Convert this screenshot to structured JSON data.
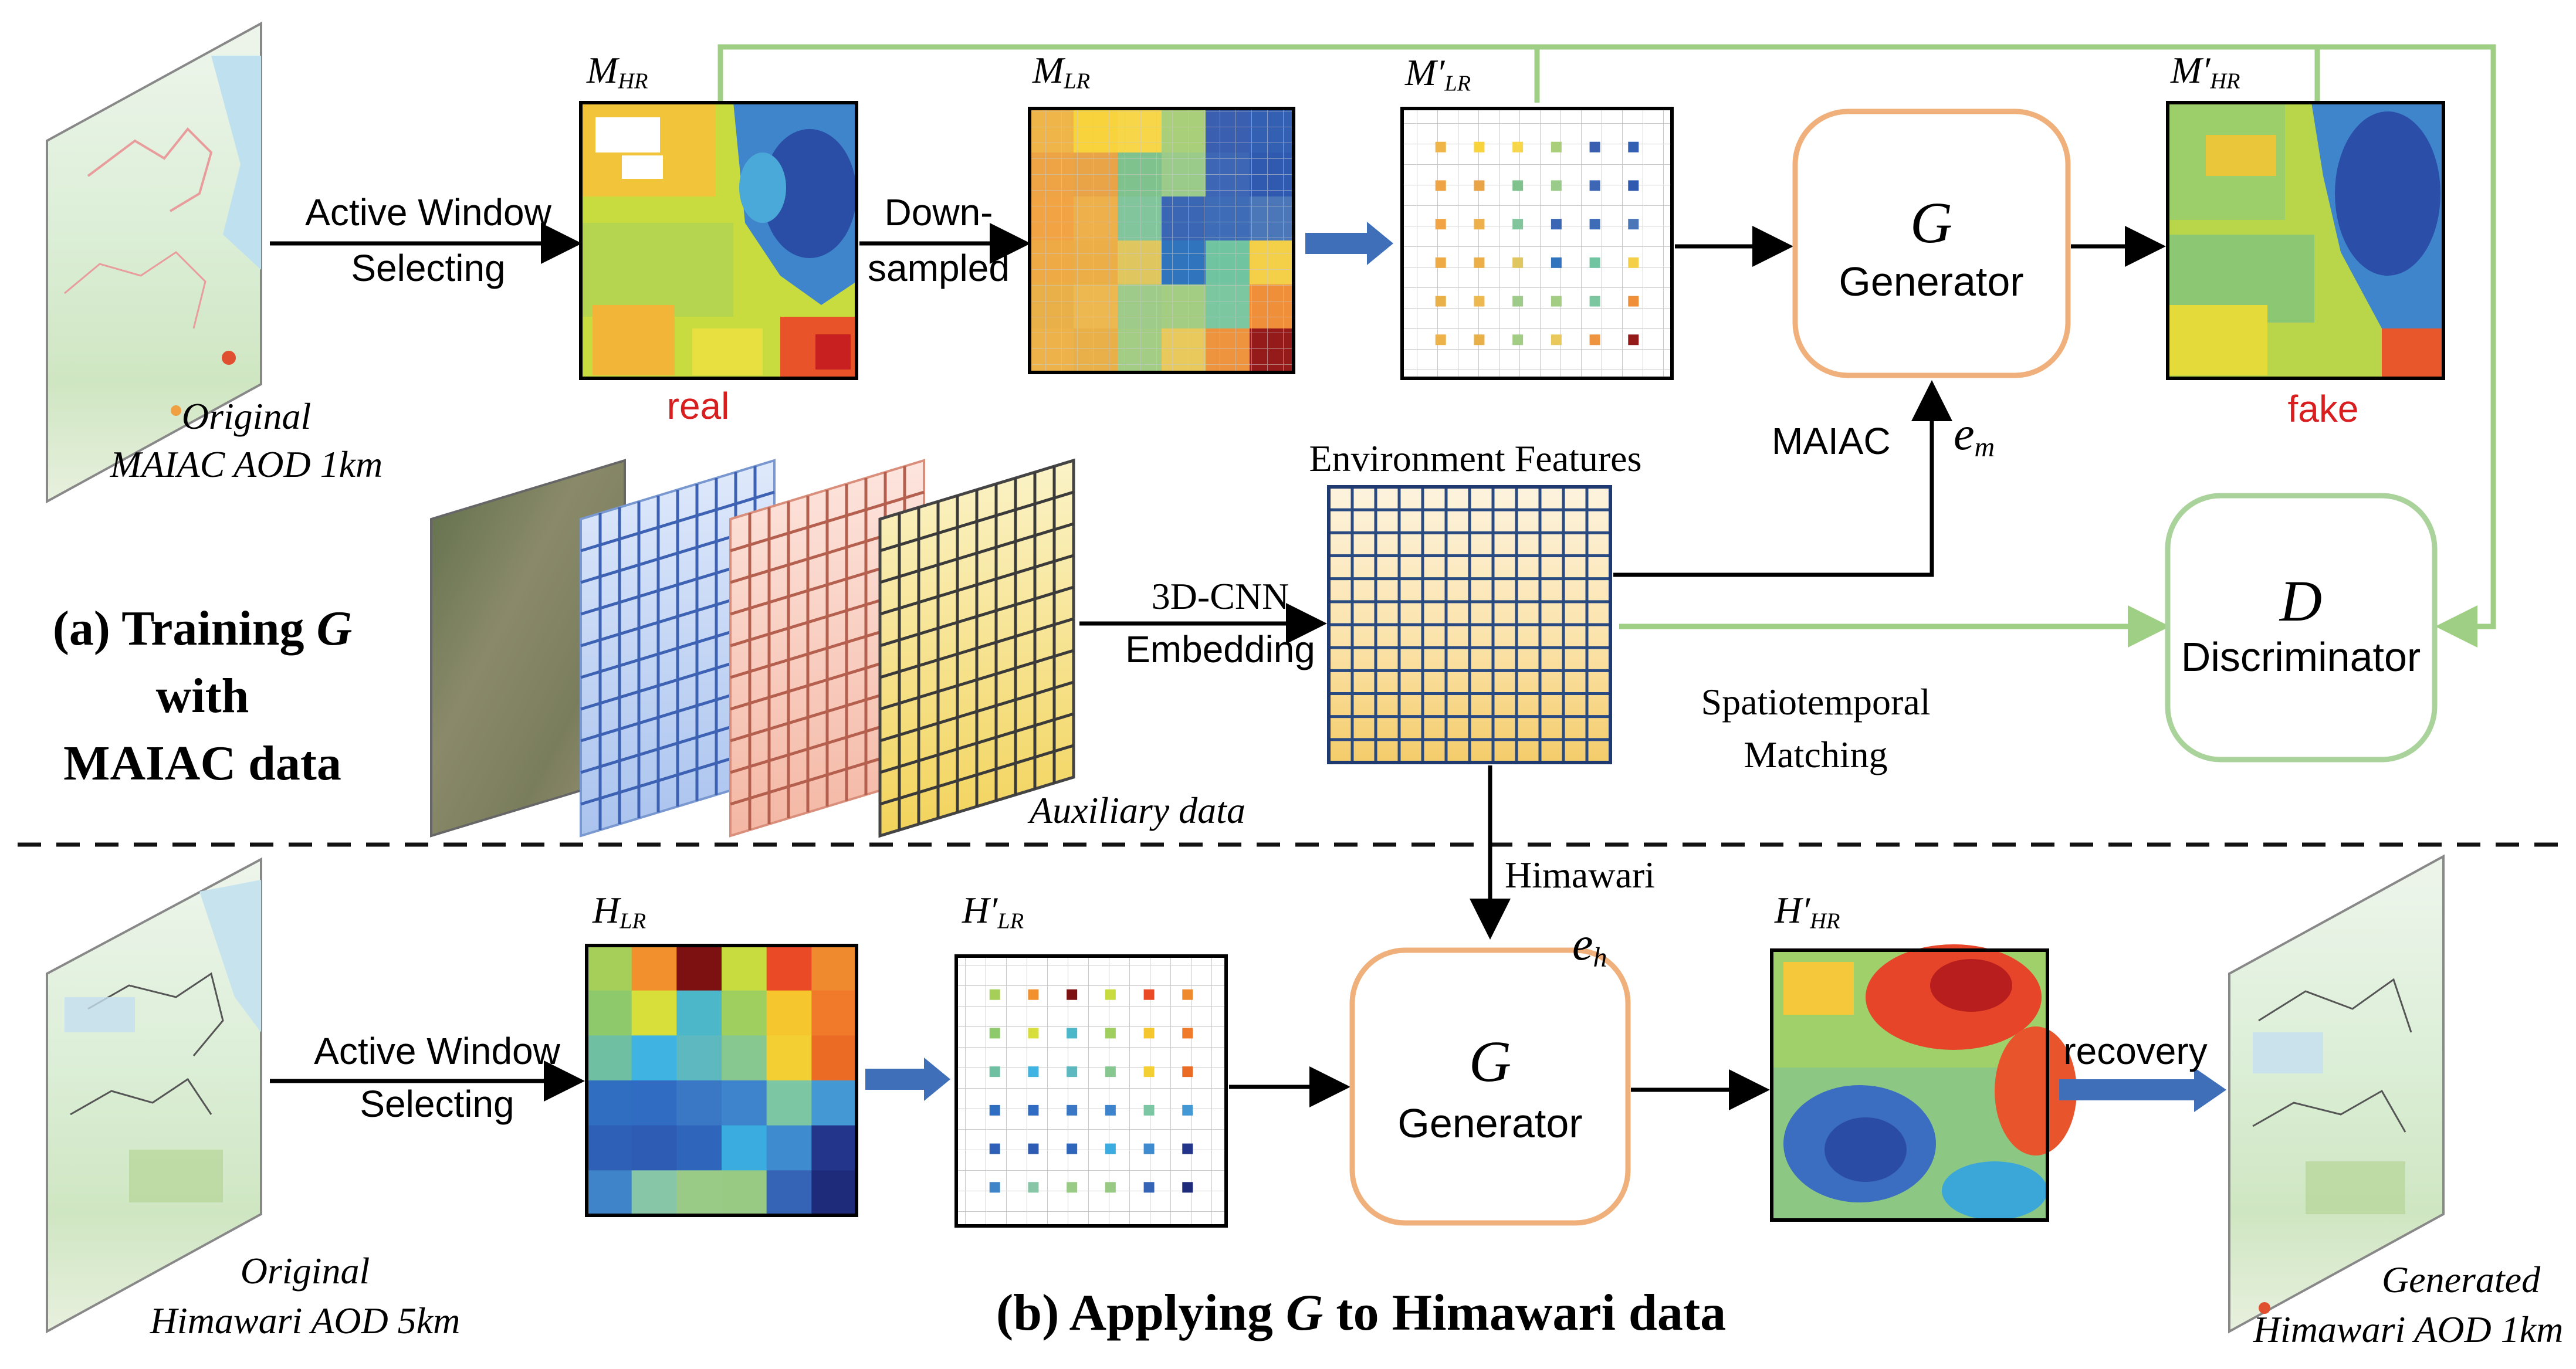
{
  "part_a": {
    "original_input": {
      "line1": "Original",
      "line2": "MAIAC AOD 1km"
    },
    "step_active_window": {
      "line1": "Active Window",
      "line2": "Selecting"
    },
    "m_hr": {
      "symbol": "M",
      "sub": "HR",
      "caption": "real"
    },
    "step_downsample": {
      "line1": "Down-",
      "line2": "sampled"
    },
    "m_lr": {
      "symbol": "M",
      "sub": "LR"
    },
    "m_prime_lr": {
      "symbol": "M′",
      "sub": "LR"
    },
    "generator": {
      "symbol": "G",
      "name": "Generator"
    },
    "m_prime_hr": {
      "symbol": "M′",
      "sub": "HR",
      "caption": "fake"
    },
    "maiac_label": "MAIAC",
    "e_m": {
      "symbol": "e",
      "sub": "m"
    },
    "environment_features": "Environment Features",
    "embedding": {
      "line1": "3D-CNN",
      "line2": "Embedding"
    },
    "auxiliary_data": "Auxiliary data",
    "discriminator": {
      "symbol": "D",
      "name": "Discriminator"
    },
    "spatiotemporal": {
      "line1": "Spatiotemporal",
      "line2": "Matching"
    },
    "title": {
      "line1a": "(a) Training ",
      "line1b": "G",
      "line2": "with",
      "line3": "MAIAC data"
    }
  },
  "part_b": {
    "himawari_label": "Himawari",
    "e_h": {
      "symbol": "e",
      "sub": "h"
    },
    "original_input": {
      "line1": "Original",
      "line2": "Himawari AOD 5km"
    },
    "step_active_window": {
      "line1": "Active Window",
      "line2": "Selecting"
    },
    "h_lr": {
      "symbol": "H",
      "sub": "LR"
    },
    "h_prime_lr": {
      "symbol": "H′",
      "sub": "LR"
    },
    "generator": {
      "symbol": "G",
      "name": "Generator"
    },
    "h_prime_hr": {
      "symbol": "H′",
      "sub": "HR"
    },
    "recovery": "recovery",
    "output": {
      "line1": "Generated",
      "line2": "Himawari AOD 1km"
    },
    "title": {
      "a": "(b) Applying ",
      "b": "G",
      "c": " to Himawari data"
    }
  },
  "colors": {
    "green_path": "#9fcf85",
    "generator_border": "#f0b07c",
    "discriminator_border": "#a9d39a",
    "blue_arrow": "#3f6fb8",
    "red_label": "#d81e1e"
  },
  "h_lr_grid": [
    [
      "#a6cf5a",
      "#f2902e",
      "#7d1010",
      "#c8dc3f",
      "#ea4a25",
      "#f08a2e"
    ],
    [
      "#8ec96c",
      "#d8df3a",
      "#4cb7c8",
      "#9fcf5e",
      "#f6c62e",
      "#f07a2a"
    ],
    [
      "#6fc0a3",
      "#3fb4e2",
      "#5eb8c0",
      "#86c890",
      "#f4cf34",
      "#ec6b24"
    ],
    [
      "#2f6ec0",
      "#2f6cc2",
      "#3a78c6",
      "#3e84cc",
      "#7cc6a4",
      "#4498d4"
    ],
    [
      "#2f60b8",
      "#2e5cb4",
      "#2f66bc",
      "#3aace0",
      "#3f8bd0",
      "#23358a"
    ],
    [
      "#3f84c8",
      "#87c6a6",
      "#9acb86",
      "#98ca84",
      "#3564b6",
      "#1e2a7a"
    ]
  ],
  "m_lr_grid": [
    [
      "#f0b548",
      "#f8d33c",
      "#f8d64a",
      "#a9cf7a",
      "#3a5fb0",
      "#3460b4"
    ],
    [
      "#eea444",
      "#e8a446",
      "#80c28e",
      "#9acb8a",
      "#3d67b4",
      "#2f5ab0"
    ],
    [
      "#f2a444",
      "#eeb04a",
      "#82c49c",
      "#3b66b4",
      "#3e6cb6",
      "#4b76b8"
    ],
    [
      "#eeaa44",
      "#ecaf48",
      "#dfc65e",
      "#2f74bc",
      "#70c4a0",
      "#f4d048"
    ],
    [
      "#e9b04a",
      "#ecb84f",
      "#9fcb8a",
      "#a4cd84",
      "#7cc6a0",
      "#ef8f3a"
    ],
    [
      "#eeb24a",
      "#e9b04a",
      "#a3cd84",
      "#e9c95c",
      "#ef943e",
      "#951a1a"
    ]
  ]
}
